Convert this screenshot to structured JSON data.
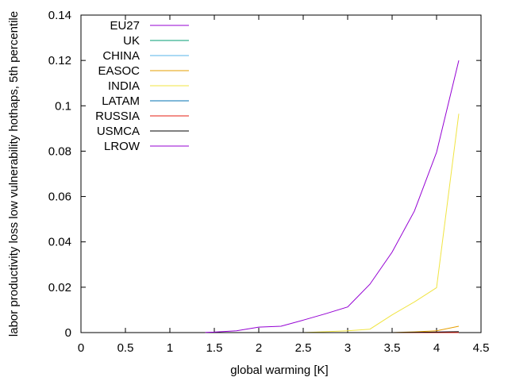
{
  "chart_data": {
    "type": "line",
    "title": "",
    "xlabel": "global warming [K]",
    "ylabel": "labor productivity loss low vulnerability hothaps, 5th percentile",
    "xlim": [
      0,
      4.5
    ],
    "ylim": [
      0,
      0.14
    ],
    "xticks": [
      0,
      0.5,
      1,
      1.5,
      2,
      2.5,
      3,
      3.5,
      4,
      4.5
    ],
    "xtick_labels": [
      "0",
      "0.5",
      "1",
      "1.5",
      "2",
      "2.5",
      "3",
      "3.5",
      "4",
      "4.5"
    ],
    "yticks": [
      0,
      0.02,
      0.04,
      0.06,
      0.08,
      0.1,
      0.12,
      0.14
    ],
    "ytick_labels": [
      "0",
      "0.02",
      "0.04",
      "0.06",
      "0.08",
      "0.1",
      "0.12",
      "0.14"
    ],
    "grid": false,
    "legend_position": "top-left",
    "series": [
      {
        "name": "EU27",
        "color": "#9400d3",
        "x": [
          1.4,
          1.5,
          1.75,
          2.0,
          2.25,
          2.5,
          2.75,
          3.0,
          3.25,
          3.5,
          3.75,
          4.0,
          4.25
        ],
        "y": [
          0,
          0,
          0,
          0,
          0,
          0,
          0,
          0,
          0,
          0,
          0,
          0.0002,
          0.0003
        ]
      },
      {
        "name": "UK",
        "color": "#009e73",
        "x": [
          1.4,
          1.75,
          2.0,
          2.5,
          3.0,
          3.5,
          4.0,
          4.25
        ],
        "y": [
          0,
          0,
          0,
          0,
          0,
          0,
          0,
          0
        ]
      },
      {
        "name": "CHINA",
        "color": "#56b4e9",
        "x": [
          1.4,
          1.75,
          2.0,
          2.5,
          3.0,
          3.5,
          4.0,
          4.25
        ],
        "y": [
          0,
          0,
          0,
          0,
          0,
          0,
          0,
          0.0002
        ]
      },
      {
        "name": "EASOC",
        "color": "#e69f00",
        "x": [
          1.4,
          1.75,
          2.0,
          2.5,
          3.0,
          3.5,
          3.75,
          4.0,
          4.25
        ],
        "y": [
          0,
          0,
          0,
          0,
          0,
          0,
          0.0003,
          0.0008,
          0.0028
        ]
      },
      {
        "name": "INDIA",
        "color": "#f0e442",
        "x": [
          1.4,
          1.75,
          2.0,
          2.5,
          3.0,
          3.25,
          3.5,
          3.75,
          4.0,
          4.25
        ],
        "y": [
          0,
          0,
          0,
          0,
          0.0008,
          0.0015,
          0.0078,
          0.0135,
          0.0198,
          0.0965
        ]
      },
      {
        "name": "LATAM",
        "color": "#0072b2",
        "x": [
          1.4,
          1.75,
          2.0,
          2.5,
          3.0,
          3.5,
          4.0,
          4.25
        ],
        "y": [
          0,
          0,
          0,
          0,
          0,
          0,
          0,
          0
        ]
      },
      {
        "name": "RUSSIA",
        "color": "#e51e10",
        "x": [
          1.4,
          1.75,
          2.0,
          2.5,
          3.0,
          3.5,
          4.0,
          4.25
        ],
        "y": [
          0,
          0,
          0,
          0,
          0,
          0,
          0,
          0
        ]
      },
      {
        "name": "USMCA",
        "color": "#000000",
        "x": [
          1.4,
          1.75,
          2.0,
          2.5,
          3.0,
          3.5,
          4.0,
          4.25
        ],
        "y": [
          0,
          0,
          0,
          0,
          0,
          0,
          0.0002,
          0.0004
        ]
      },
      {
        "name": "LROW",
        "color": "#9400d3",
        "x": [
          1.4,
          1.5,
          1.75,
          2.0,
          2.25,
          2.5,
          2.75,
          3.0,
          3.25,
          3.5,
          3.75,
          4.0,
          4.25
        ],
        "y": [
          0.0001,
          0.0002,
          0.0008,
          0.0024,
          0.0028,
          0.0055,
          0.0083,
          0.0113,
          0.0213,
          0.0355,
          0.0535,
          0.0795,
          0.12
        ]
      }
    ]
  }
}
